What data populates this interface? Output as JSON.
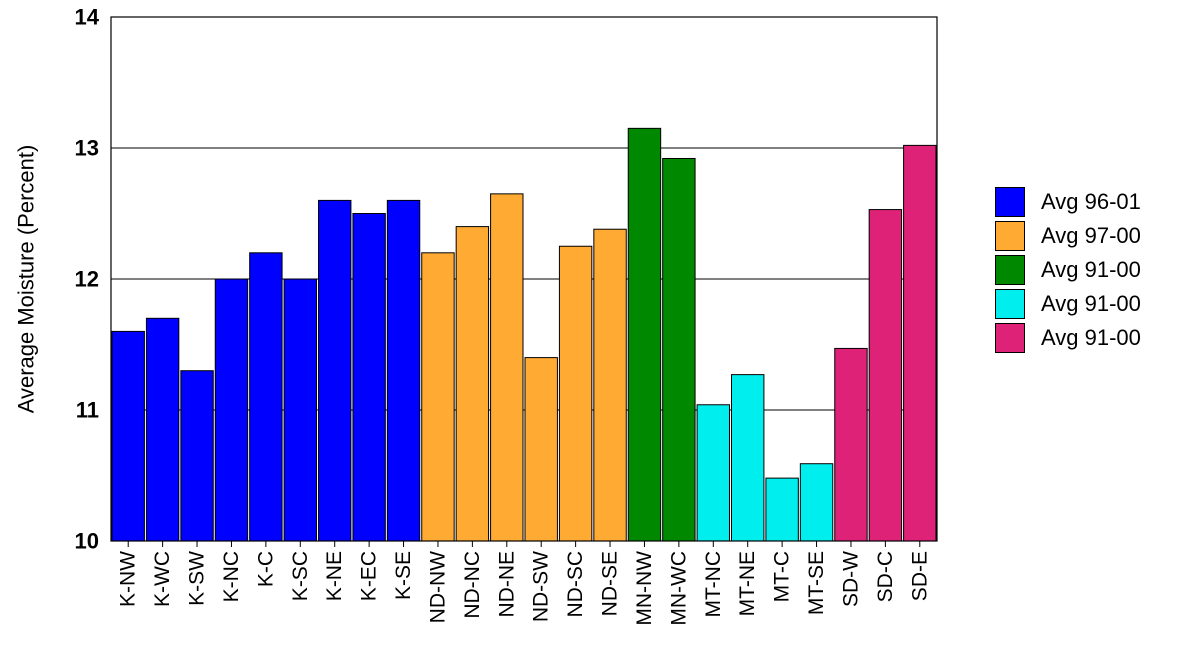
{
  "chart_data": {
    "type": "bar",
    "title": "",
    "xlabel": "",
    "ylabel": "Average Moisture (Percent)",
    "ylim": [
      10,
      14
    ],
    "yticks": [
      "10",
      "11",
      "12",
      "13",
      "14"
    ],
    "grid": true,
    "legend_position": "right",
    "categories": [
      "K-NW",
      "K-WC",
      "K-SW",
      "K-NC",
      "K-C",
      "K-SC",
      "K-NE",
      "K-EC",
      "K-SE",
      "ND-NW",
      "ND-NC",
      "ND-NE",
      "ND-SW",
      "ND-SC",
      "ND-SE",
      "MN-NW",
      "MN-WC",
      "MT-NC",
      "MT-NE",
      "MT-C",
      "MT-SE",
      "SD-W",
      "SD-C",
      "SD-E"
    ],
    "values": [
      11.6,
      11.7,
      11.3,
      12.0,
      12.2,
      12.0,
      12.6,
      12.5,
      12.6,
      12.2,
      12.4,
      12.65,
      11.4,
      12.25,
      12.38,
      13.15,
      12.92,
      11.04,
      11.27,
      10.48,
      10.59,
      11.47,
      12.53,
      13.02
    ],
    "series": [
      {
        "name": "Avg 96-01",
        "color": "#0000ff",
        "categories": [
          "K-NW",
          "K-WC",
          "K-SW",
          "K-NC",
          "K-C",
          "K-SC",
          "K-NE",
          "K-EC",
          "K-SE"
        ]
      },
      {
        "name": "Avg 97-00",
        "color": "#ffaa33",
        "categories": [
          "ND-NW",
          "ND-NC",
          "ND-NE",
          "ND-SW",
          "ND-SC",
          "ND-SE"
        ]
      },
      {
        "name": "Avg 91-00",
        "color": "#008800",
        "categories": [
          "MN-NW",
          "MN-WC"
        ]
      },
      {
        "name": "Avg 91-00",
        "color": "#00eeee",
        "categories": [
          "MT-NC",
          "MT-NE",
          "MT-C",
          "MT-SE"
        ]
      },
      {
        "name": "Avg 91-00",
        "color": "#dd2277",
        "categories": [
          "SD-W",
          "SD-C",
          "SD-E"
        ]
      }
    ]
  }
}
